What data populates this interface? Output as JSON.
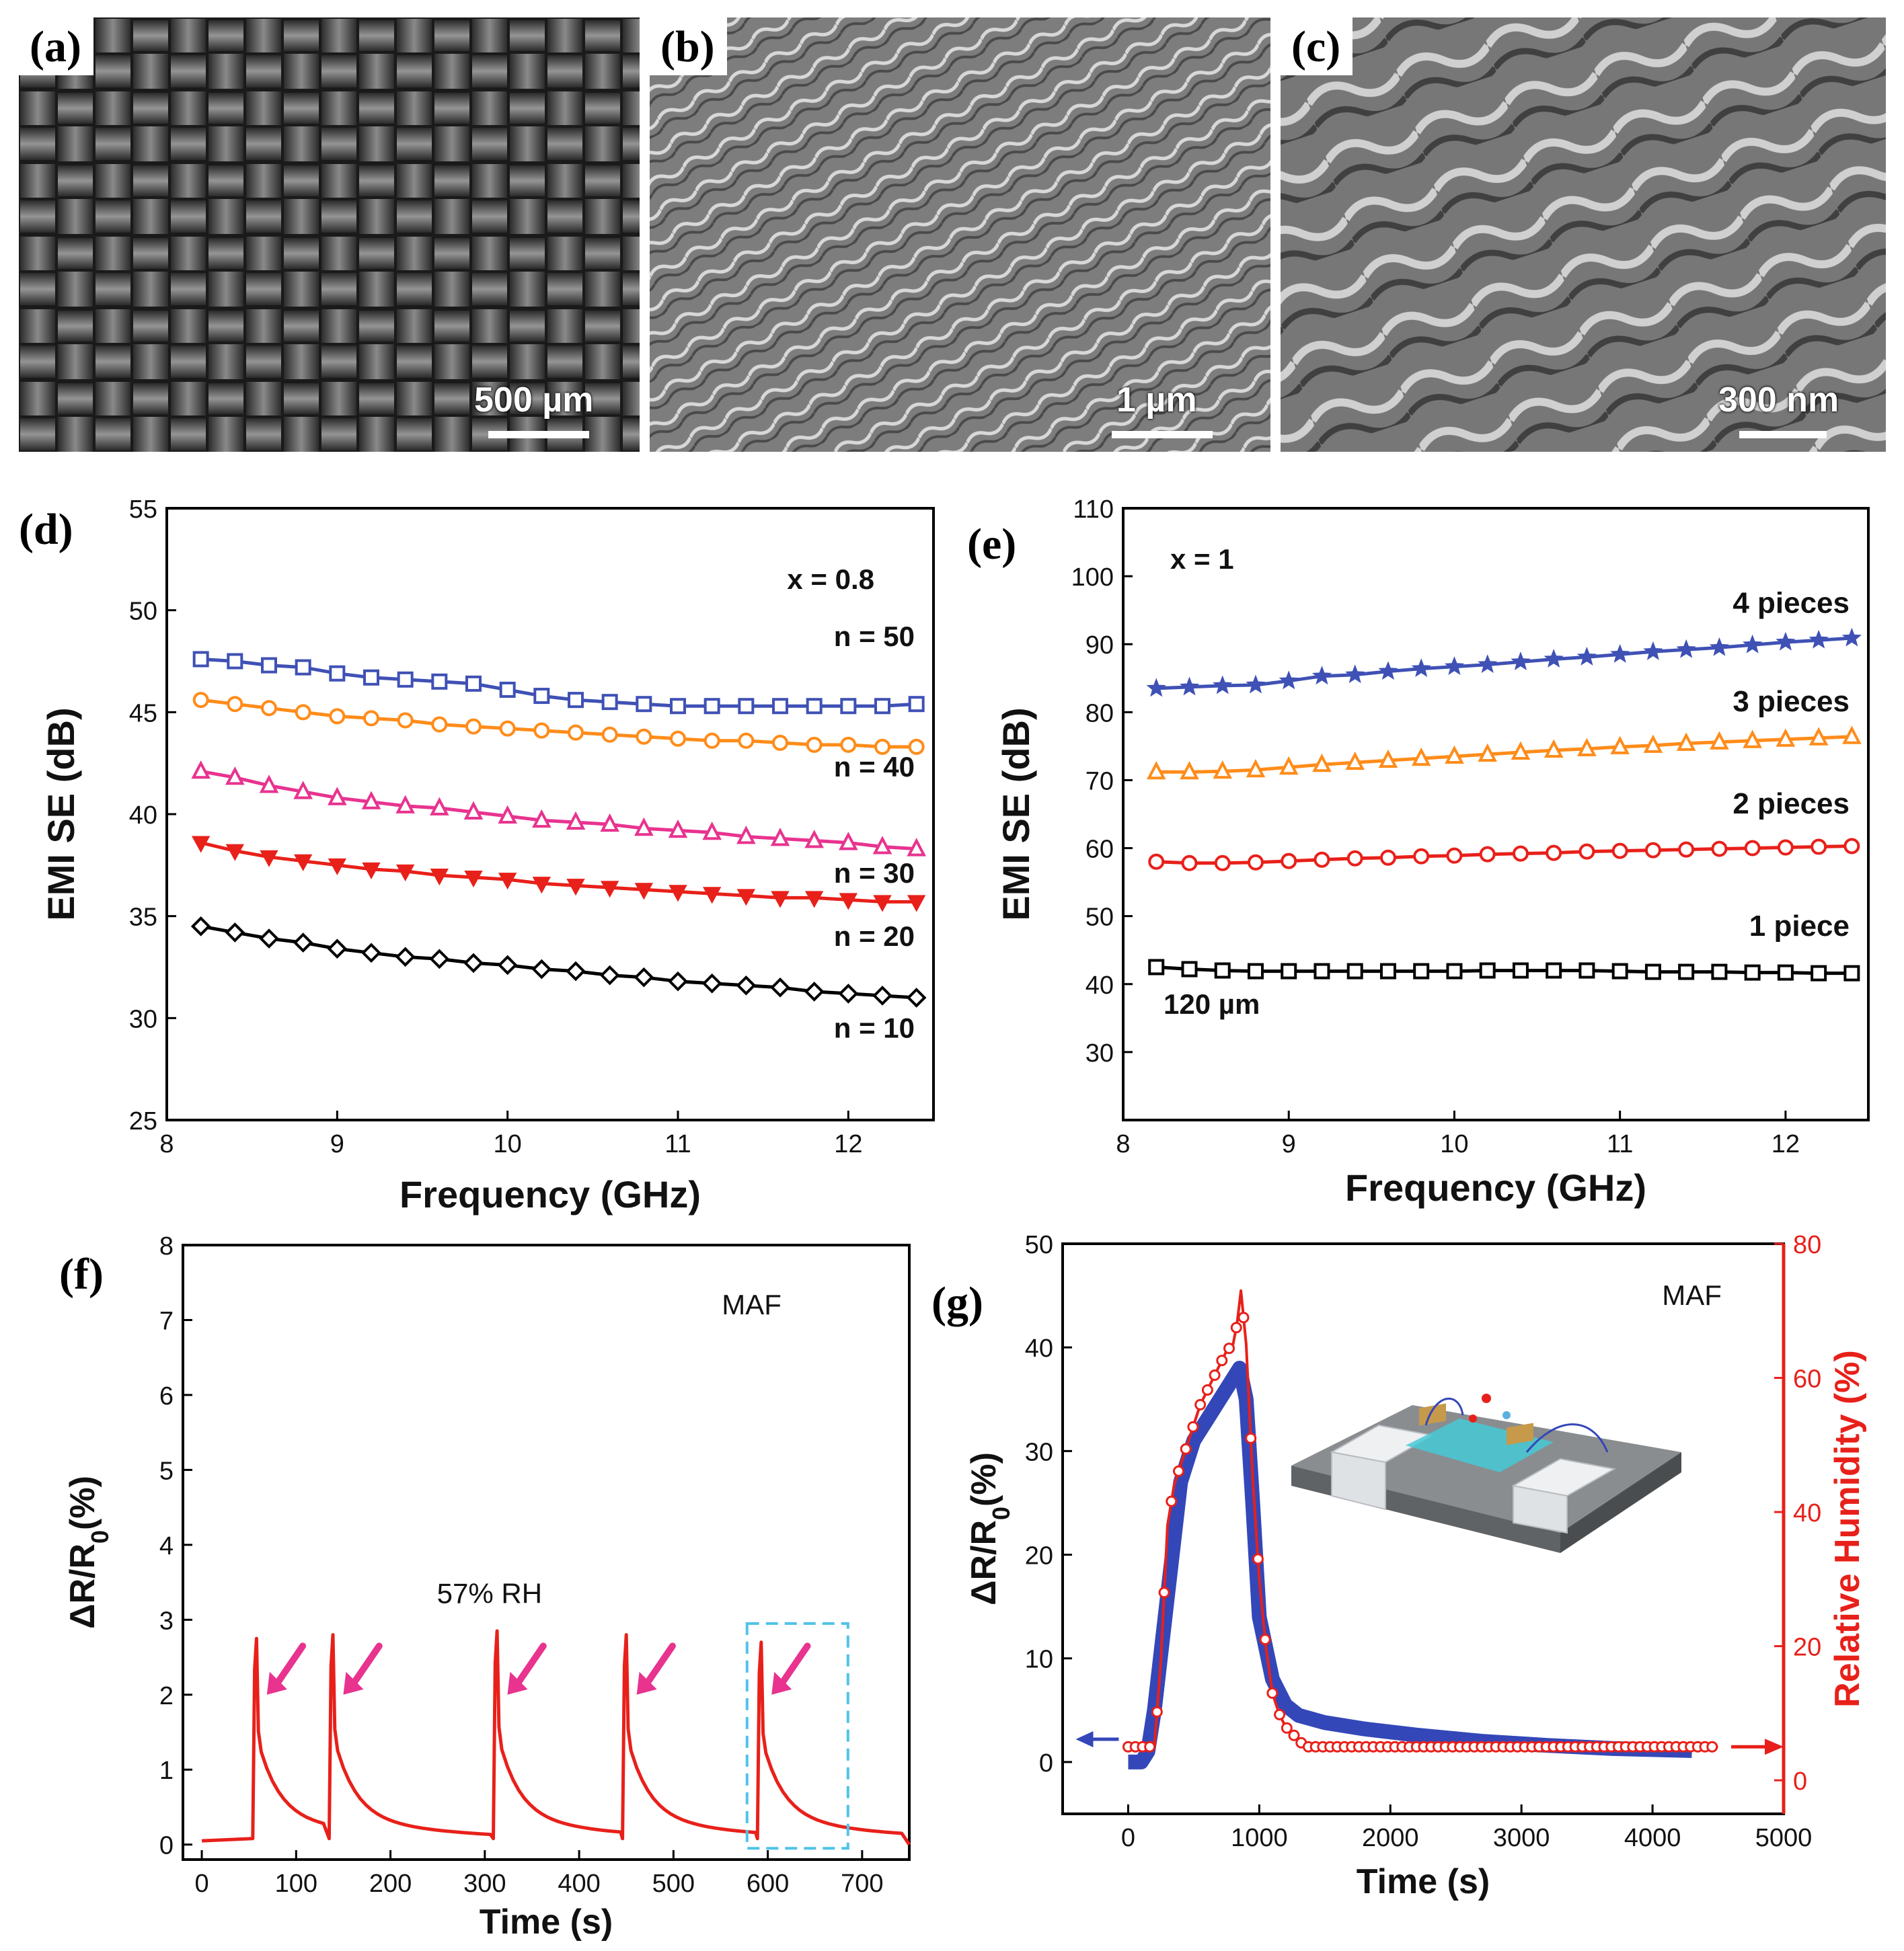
{
  "panels": {
    "a": {
      "label": "(a)",
      "scale": "500 µm"
    },
    "b": {
      "label": "(b)",
      "scale": "1 µm"
    },
    "c": {
      "label": "(c)",
      "scale": "300 nm"
    },
    "d": {
      "label": "(d)"
    },
    "e": {
      "label": "(e)"
    },
    "f": {
      "label": "(f)"
    },
    "g": {
      "label": "(g)"
    }
  },
  "chart_data": [
    {
      "id": "d",
      "type": "line",
      "xlabel": "Frequency (GHz)",
      "ylabel": "EMI SE (dB)",
      "xlim": [
        8,
        12.5
      ],
      "ylim": [
        25,
        55
      ],
      "xticks": [
        8,
        9,
        10,
        11,
        12
      ],
      "yticks": [
        25,
        30,
        35,
        40,
        45,
        50,
        55
      ],
      "annotation": "x = 0.8",
      "x": [
        8.2,
        8.4,
        8.6,
        8.8,
        9.0,
        9.2,
        9.4,
        9.6,
        9.8,
        10.0,
        10.2,
        10.4,
        10.6,
        10.8,
        11.0,
        11.2,
        11.4,
        11.6,
        11.8,
        12.0,
        12.2,
        12.4
      ],
      "series": [
        {
          "name": "n = 50",
          "color": "#3f51b5",
          "marker": "square",
          "values": [
            47.6,
            47.5,
            47.3,
            47.2,
            46.9,
            46.7,
            46.6,
            46.5,
            46.4,
            46.1,
            45.8,
            45.6,
            45.5,
            45.4,
            45.3,
            45.3,
            45.3,
            45.3,
            45.3,
            45.3,
            45.3,
            45.4
          ]
        },
        {
          "name": "n = 40",
          "color": "#ff8c1a",
          "marker": "circle",
          "values": [
            45.6,
            45.4,
            45.2,
            45.0,
            44.8,
            44.7,
            44.6,
            44.4,
            44.3,
            44.2,
            44.1,
            44.0,
            43.9,
            43.8,
            43.7,
            43.6,
            43.6,
            43.5,
            43.4,
            43.4,
            43.3,
            43.3
          ]
        },
        {
          "name": "n = 30",
          "color": "#e8338f",
          "marker": "triangle",
          "values": [
            42.1,
            41.8,
            41.4,
            41.1,
            40.8,
            40.6,
            40.4,
            40.3,
            40.1,
            39.9,
            39.7,
            39.6,
            39.5,
            39.3,
            39.2,
            39.1,
            38.9,
            38.8,
            38.7,
            38.6,
            38.4,
            38.3
          ]
        },
        {
          "name": "n = 20",
          "color": "#e8201a",
          "marker": "triangle-down",
          "values": [
            38.6,
            38.2,
            37.9,
            37.7,
            37.5,
            37.3,
            37.2,
            37.0,
            36.9,
            36.8,
            36.6,
            36.5,
            36.4,
            36.3,
            36.2,
            36.1,
            36.0,
            35.9,
            35.9,
            35.8,
            35.7,
            35.7
          ]
        },
        {
          "name": "n = 10",
          "color": "#000000",
          "marker": "diamond",
          "values": [
            34.5,
            34.2,
            33.9,
            33.7,
            33.4,
            33.2,
            33.0,
            32.9,
            32.7,
            32.6,
            32.4,
            32.3,
            32.1,
            32.0,
            31.8,
            31.7,
            31.6,
            31.5,
            31.3,
            31.2,
            31.1,
            31.0
          ]
        }
      ]
    },
    {
      "id": "e",
      "type": "line",
      "xlabel": "Frequency (GHz)",
      "ylabel": "EMI SE (dB)",
      "xlim": [
        8,
        12.5
      ],
      "ylim": [
        20,
        110
      ],
      "xticks": [
        8,
        9,
        10,
        11,
        12
      ],
      "yticks": [
        30,
        40,
        50,
        60,
        70,
        80,
        90,
        100,
        110
      ],
      "annotation": "x = 1",
      "thickness_label": "120 µm",
      "x": [
        8.2,
        8.4,
        8.6,
        8.8,
        9.0,
        9.2,
        9.4,
        9.6,
        9.8,
        10.0,
        10.2,
        10.4,
        10.6,
        10.8,
        11.0,
        11.2,
        11.4,
        11.6,
        11.8,
        12.0,
        12.2,
        12.4
      ],
      "series": [
        {
          "name": "4 pieces",
          "color": "#3f51b5",
          "marker": "star",
          "values": [
            83.5,
            83.7,
            83.9,
            84.0,
            84.6,
            85.3,
            85.5,
            86.0,
            86.4,
            86.7,
            87.0,
            87.4,
            87.8,
            88.1,
            88.5,
            88.9,
            89.2,
            89.5,
            89.9,
            90.3,
            90.6,
            90.9
          ]
        },
        {
          "name": "3 pieces",
          "color": "#ff8c1a",
          "marker": "triangle",
          "values": [
            71.2,
            71.2,
            71.3,
            71.5,
            71.9,
            72.3,
            72.6,
            72.9,
            73.2,
            73.5,
            73.8,
            74.1,
            74.4,
            74.6,
            74.9,
            75.1,
            75.4,
            75.6,
            75.8,
            76.0,
            76.2,
            76.4
          ]
        },
        {
          "name": "2 pieces",
          "color": "#e8201a",
          "marker": "circle",
          "values": [
            58.0,
            57.8,
            57.8,
            57.9,
            58.1,
            58.3,
            58.5,
            58.6,
            58.8,
            58.9,
            59.1,
            59.2,
            59.3,
            59.5,
            59.6,
            59.7,
            59.8,
            59.9,
            60.0,
            60.1,
            60.2,
            60.3
          ]
        },
        {
          "name": "1 piece",
          "color": "#000000",
          "marker": "square",
          "values": [
            42.5,
            42.2,
            42.0,
            41.9,
            41.9,
            41.9,
            41.9,
            41.9,
            41.9,
            41.9,
            42.0,
            42.0,
            42.0,
            42.0,
            41.9,
            41.8,
            41.8,
            41.8,
            41.7,
            41.7,
            41.6,
            41.6
          ]
        }
      ]
    },
    {
      "id": "f",
      "type": "line",
      "xlabel": "Time (s)",
      "ylabel": "ΔR/R0(%)",
      "xlim": [
        -20,
        750
      ],
      "ylim": [
        -0.2,
        8
      ],
      "xticks": [
        0,
        100,
        200,
        300,
        400,
        500,
        600,
        700
      ],
      "yticks": [
        0,
        1,
        2,
        3,
        4,
        5,
        6,
        7,
        8
      ],
      "annotation": "MAF",
      "condition_label": "57% RH",
      "baseline": 0.05,
      "pulses": [
        {
          "t": 55,
          "peak": 2.75
        },
        {
          "t": 136,
          "peak": 2.8
        },
        {
          "t": 310,
          "peak": 2.85
        },
        {
          "t": 447,
          "peak": 2.8
        },
        {
          "t": 590,
          "peak": 2.7
        }
      ],
      "highlight_box_x": [
        578,
        685
      ],
      "highlight_box_y": [
        -0.05,
        2.95
      ],
      "line_color": "#e8201a",
      "arrow_color": "#e8338f"
    },
    {
      "id": "g",
      "type": "line",
      "xlabel": "Time (s)",
      "ylabel": "ΔR/R0(%)",
      "y2label": "Relative Humidity (%)",
      "xlim": [
        -500,
        5000
      ],
      "ylim": [
        -5,
        50
      ],
      "y2lim": [
        -5,
        80
      ],
      "xticks": [
        0,
        1000,
        2000,
        3000,
        4000,
        5000
      ],
      "yticks": [
        0,
        10,
        20,
        30,
        40,
        50
      ],
      "y2ticks": [
        0,
        20,
        40,
        60,
        80
      ],
      "annotation": "MAF",
      "series": [
        {
          "name": "ΔR/R0",
          "axis": "left",
          "color": "#3447b8",
          "x": [
            0,
            100,
            150,
            200,
            300,
            400,
            500,
            600,
            700,
            800,
            850,
            900,
            950,
            1000,
            1100,
            1200,
            1300,
            1500,
            1800,
            2200,
            2700,
            3200,
            3700,
            4300
          ],
          "values": [
            0,
            0,
            1,
            5,
            16,
            27,
            31,
            33,
            35,
            37,
            38,
            35,
            25,
            14,
            8,
            5.5,
            4.5,
            3.8,
            3.2,
            2.6,
            2.0,
            1.6,
            1.3,
            1.1
          ]
        },
        {
          "name": "Relative Humidity",
          "axis": "right",
          "color": "#e8201a",
          "x": [
            0,
            100,
            200,
            250,
            300,
            350,
            400,
            450,
            500,
            550,
            600,
            650,
            700,
            750,
            800,
            830,
            860,
            900,
            950,
            1000,
            1050,
            1100,
            1150,
            1200,
            1250,
            1300,
            1350,
            1400,
            4500
          ],
          "values": [
            5,
            5,
            5,
            18,
            38,
            44,
            47,
            50,
            53,
            56,
            58,
            60,
            62,
            64,
            65,
            68,
            73,
            65,
            45,
            30,
            20,
            13,
            10,
            8,
            7,
            6,
            5,
            5,
            5
          ]
        }
      ]
    }
  ]
}
